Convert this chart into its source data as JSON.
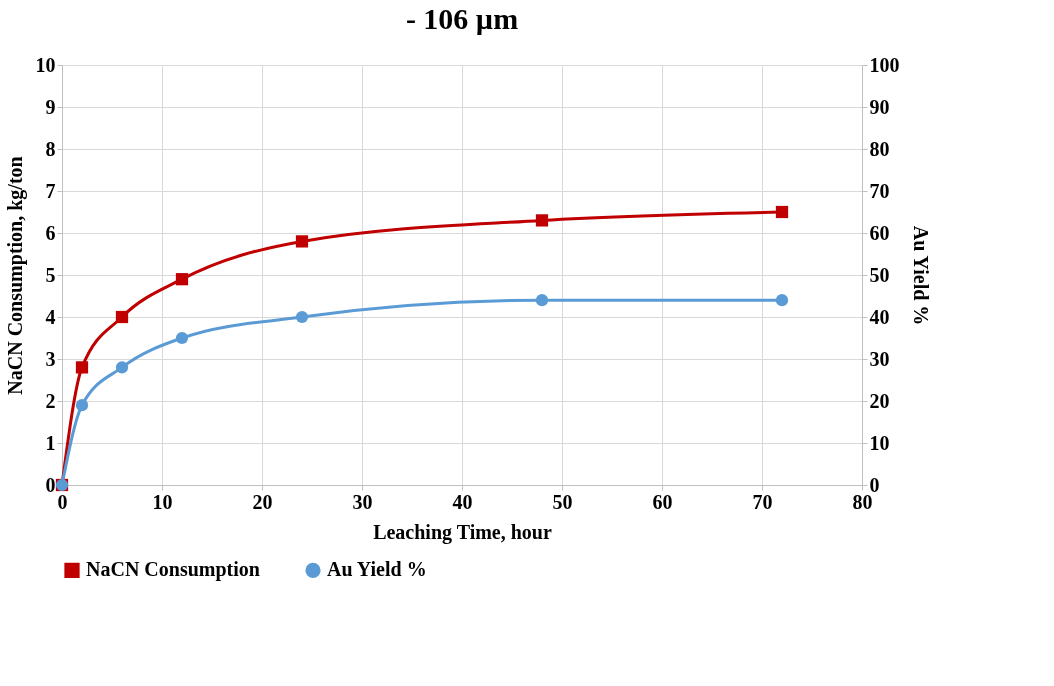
{
  "chart_data": {
    "type": "line",
    "title": "- 106 µm",
    "xlabel": "Leaching Time, hour",
    "ylabel": "NaCN Consumption, kg/ton",
    "y2label": "Au Yield %",
    "x": [
      0,
      2,
      6,
      12,
      24,
      48,
      72
    ],
    "series": [
      {
        "name": "NaCN Consumption",
        "color": "#c00000",
        "marker": "square",
        "values": [
          0,
          2.8,
          4.0,
          4.9,
          5.8,
          6.3,
          6.5
        ]
      },
      {
        "name": "Au Yield %",
        "color": "#5b9bd5",
        "marker": "circle",
        "axis": "y2",
        "values": [
          0,
          19,
          28,
          35,
          40,
          44,
          44
        ]
      }
    ],
    "xlim": [
      0,
      80
    ],
    "xticks": [
      0,
      10,
      20,
      30,
      40,
      50,
      60,
      70,
      80
    ],
    "ylim": [
      0,
      10
    ],
    "yticks": [
      0,
      1,
      2,
      3,
      4,
      5,
      6,
      7,
      8,
      9,
      10
    ],
    "y2lim": [
      0,
      100
    ],
    "y2ticks": [
      0,
      10,
      20,
      30,
      40,
      50,
      60,
      70,
      80,
      90,
      100
    ],
    "grid": true,
    "legend": "bottom",
    "line_style": "solid"
  }
}
